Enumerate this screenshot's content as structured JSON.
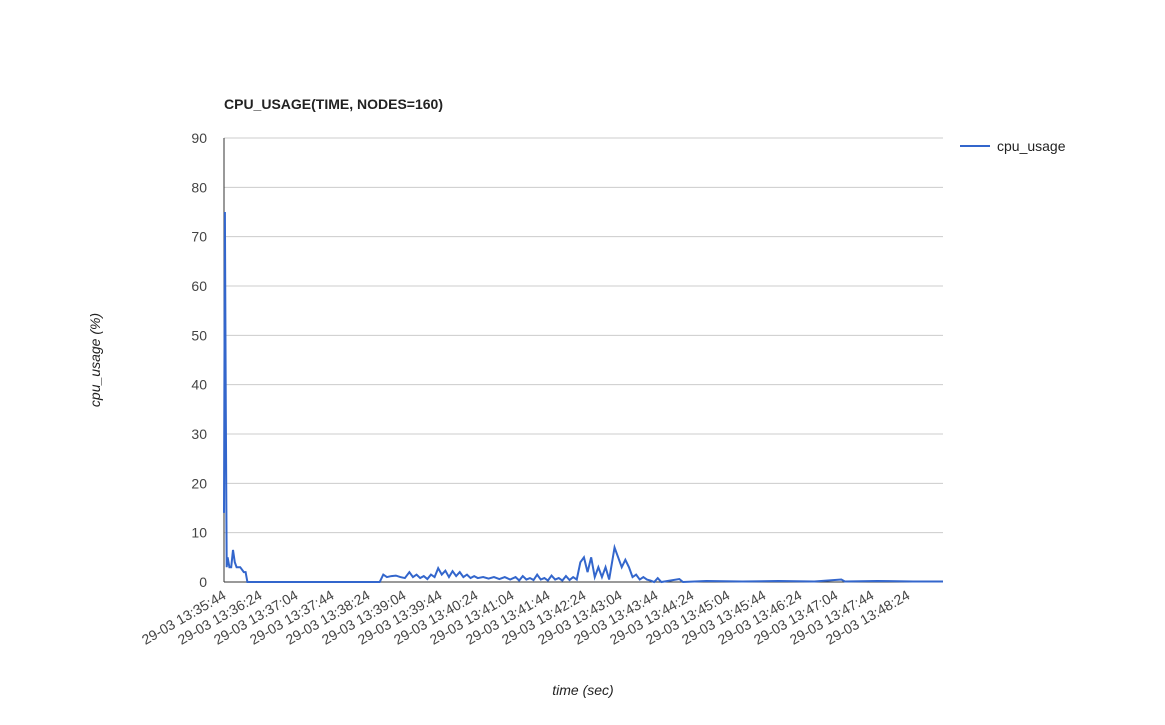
{
  "chart_data": {
    "type": "line",
    "title": "CPU_USAGE(TIME, NODES=160)",
    "x_label": "time (sec)",
    "y_label": "cpu_usage (%)",
    "x": [
      "29-03 13:35:44",
      "29-03 13:35:45",
      "29-03 13:35:46",
      "29-03 13:35:47",
      "29-03 13:35:48",
      "29-03 13:35:50",
      "29-03 13:35:52",
      "29-03 13:35:54",
      "29-03 13:35:56",
      "29-03 13:35:58",
      "29-03 13:36:02",
      "29-03 13:36:06",
      "29-03 13:36:08",
      "29-03 13:36:10",
      "29-03 13:38:37",
      "29-03 13:38:41",
      "29-03 13:38:45",
      "29-03 13:38:50",
      "29-03 13:38:55",
      "29-03 13:39:00",
      "29-03 13:39:05",
      "29-03 13:39:10",
      "29-03 13:39:14",
      "29-03 13:39:18",
      "29-03 13:39:22",
      "29-03 13:39:26",
      "29-03 13:39:30",
      "29-03 13:39:34",
      "29-03 13:39:38",
      "29-03 13:39:42",
      "29-03 13:39:46",
      "29-03 13:39:50",
      "29-03 13:39:54",
      "29-03 13:39:58",
      "29-03 13:40:02",
      "29-03 13:40:06",
      "29-03 13:40:10",
      "29-03 13:40:14",
      "29-03 13:40:18",
      "29-03 13:40:22",
      "29-03 13:40:26",
      "29-03 13:40:32",
      "29-03 13:40:38",
      "29-03 13:40:44",
      "29-03 13:40:50",
      "29-03 13:40:56",
      "29-03 13:41:02",
      "29-03 13:41:08",
      "29-03 13:41:12",
      "29-03 13:41:16",
      "29-03 13:41:20",
      "29-03 13:41:24",
      "29-03 13:41:28",
      "29-03 13:41:32",
      "29-03 13:41:36",
      "29-03 13:41:40",
      "29-03 13:41:44",
      "29-03 13:41:48",
      "29-03 13:41:52",
      "29-03 13:41:56",
      "29-03 13:42:00",
      "29-03 13:42:04",
      "29-03 13:42:08",
      "29-03 13:42:12",
      "29-03 13:42:16",
      "29-03 13:42:20",
      "29-03 13:42:24",
      "29-03 13:42:28",
      "29-03 13:42:32",
      "29-03 13:42:36",
      "29-03 13:42:40",
      "29-03 13:42:44",
      "29-03 13:42:48",
      "29-03 13:42:52",
      "29-03 13:42:58",
      "29-03 13:43:02",
      "29-03 13:43:06",
      "29-03 13:43:10",
      "29-03 13:43:14",
      "29-03 13:43:18",
      "29-03 13:43:22",
      "29-03 13:43:26",
      "29-03 13:43:30",
      "29-03 13:43:34",
      "29-03 13:43:38",
      "29-03 13:43:42",
      "29-03 13:43:46",
      "29-03 13:43:50",
      "29-03 13:44:10",
      "29-03 13:44:14",
      "29-03 13:44:40",
      "29-03 13:45:20",
      "29-03 13:46:00",
      "29-03 13:46:40",
      "29-03 13:47:10",
      "29-03 13:47:14",
      "29-03 13:47:50",
      "29-03 13:48:30",
      "29-03 13:49:03"
    ],
    "series": [
      {
        "name": "cpu_usage",
        "color": "#3366cc",
        "values": [
          14,
          75,
          35,
          3,
          5,
          3,
          3,
          6.5,
          4,
          3,
          3,
          2,
          2,
          0,
          0,
          1.5,
          1,
          1.2,
          1.3,
          1,
          0.8,
          2,
          1,
          1.5,
          0.8,
          1.2,
          0.6,
          1.5,
          1,
          2.8,
          1.5,
          2.3,
          1,
          2.2,
          1.2,
          2,
          1,
          1.5,
          0.8,
          1.2,
          0.8,
          1,
          0.7,
          1,
          0.6,
          1,
          0.5,
          1,
          0.3,
          1.2,
          0.5,
          0.8,
          0.4,
          1.5,
          0.5,
          0.8,
          0.3,
          1.3,
          0.5,
          0.8,
          0.3,
          1.2,
          0.4,
          1,
          0.5,
          4,
          5,
          2,
          5,
          1,
          3,
          1,
          3,
          0.5,
          7,
          5,
          3,
          4.5,
          3,
          1,
          1.5,
          0.5,
          1,
          0.5,
          0.3,
          0,
          0.8,
          0,
          0.6,
          0,
          0.2,
          0.1,
          0.2,
          0.1,
          0.5,
          0.1,
          0.2,
          0.1,
          0.1
        ]
      }
    ],
    "xlim": [
      "29-03 13:35:44",
      "29-03 13:49:03"
    ],
    "xticks": [
      "29-03 13:35:44",
      "29-03 13:36:24",
      "29-03 13:37:04",
      "29-03 13:37:44",
      "29-03 13:38:24",
      "29-03 13:39:04",
      "29-03 13:39:44",
      "29-03 13:40:24",
      "29-03 13:41:04",
      "29-03 13:41:44",
      "29-03 13:42:24",
      "29-03 13:43:04",
      "29-03 13:43:44",
      "29-03 13:44:24",
      "29-03 13:45:04",
      "29-03 13:45:44",
      "29-03 13:46:24",
      "29-03 13:47:04",
      "29-03 13:47:44",
      "29-03 13:48:24"
    ],
    "ylim": [
      0,
      90
    ],
    "yticks": [
      0,
      10,
      20,
      30,
      40,
      50,
      60,
      70,
      80,
      90
    ],
    "grid": true,
    "legend": "right"
  }
}
